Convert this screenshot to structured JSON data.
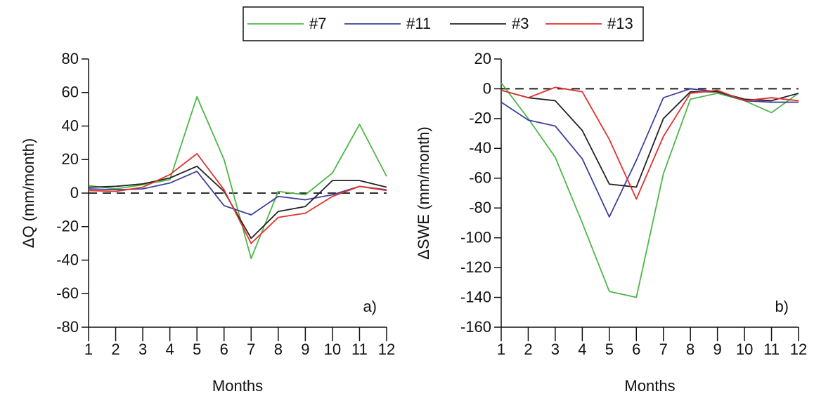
{
  "chart_data": [
    {
      "type": "line",
      "ylabel": "ΔQ (mm/month)",
      "xlabel": "Months",
      "annotation": "a)",
      "x": [
        1,
        2,
        3,
        4,
        5,
        6,
        7,
        8,
        9,
        10,
        11,
        12
      ],
      "xlim": [
        1,
        12
      ],
      "xticks": [
        1,
        2,
        3,
        4,
        5,
        6,
        7,
        8,
        9,
        10,
        11,
        12
      ],
      "ylim": [
        -80,
        80
      ],
      "yticks": [
        -80,
        -60,
        -40,
        -20,
        0,
        20,
        40,
        60,
        80
      ],
      "hline": 0,
      "series": [
        {
          "name": "#7",
          "color": "#4cb847",
          "values": [
            4.5,
            2.5,
            5,
            8,
            57.5,
            20,
            -39,
            1,
            -1,
            12,
            41,
            10
          ]
        },
        {
          "name": "#11",
          "color": "#3f3f9f",
          "values": [
            2.5,
            2,
            2.5,
            6,
            13,
            -7.5,
            -13,
            -2,
            -4,
            -1,
            4,
            2
          ]
        },
        {
          "name": "#3",
          "color": "#222222",
          "values": [
            3.5,
            4,
            5.5,
            9,
            16,
            1,
            -27,
            -11,
            -8,
            7.5,
            7.5,
            3.5
          ]
        },
        {
          "name": "#13",
          "color": "#e2312b",
          "values": [
            1.5,
            1,
            3.5,
            11,
            23.5,
            2,
            -30,
            -14.5,
            -12,
            -2,
            4,
            1.5
          ]
        }
      ]
    },
    {
      "type": "line",
      "ylabel": "ΔSWE (mm/month)",
      "xlabel": "Months",
      "annotation": "b)",
      "x": [
        1,
        2,
        3,
        4,
        5,
        6,
        7,
        8,
        9,
        10,
        11,
        12
      ],
      "xlim": [
        1,
        12
      ],
      "xticks": [
        1,
        2,
        3,
        4,
        5,
        6,
        7,
        8,
        9,
        10,
        11,
        12
      ],
      "ylim": [
        -160,
        20
      ],
      "yticks": [
        -160,
        -140,
        -120,
        -100,
        -80,
        -60,
        -40,
        -20,
        0,
        20
      ],
      "hline": 0,
      "series": [
        {
          "name": "#7",
          "color": "#4cb847",
          "values": [
            4,
            -20,
            -46,
            -90,
            -136,
            -140,
            -57,
            -7,
            -3,
            -8,
            -16,
            -3
          ]
        },
        {
          "name": "#11",
          "color": "#3f3f9f",
          "values": [
            -9,
            -21,
            -25,
            -47,
            -86,
            -48,
            -6,
            0,
            -2,
            -8,
            -9,
            -9
          ]
        },
        {
          "name": "#3",
          "color": "#222222",
          "values": [
            -1,
            -6,
            -8,
            -28,
            -64,
            -66,
            -20,
            -2,
            -2,
            -7,
            -8,
            -3
          ]
        },
        {
          "name": "#13",
          "color": "#e2312b",
          "values": [
            -1,
            -6,
            1,
            -2,
            -34,
            -74,
            -32,
            -3,
            -1,
            -8,
            -6,
            -8
          ]
        }
      ]
    }
  ]
}
